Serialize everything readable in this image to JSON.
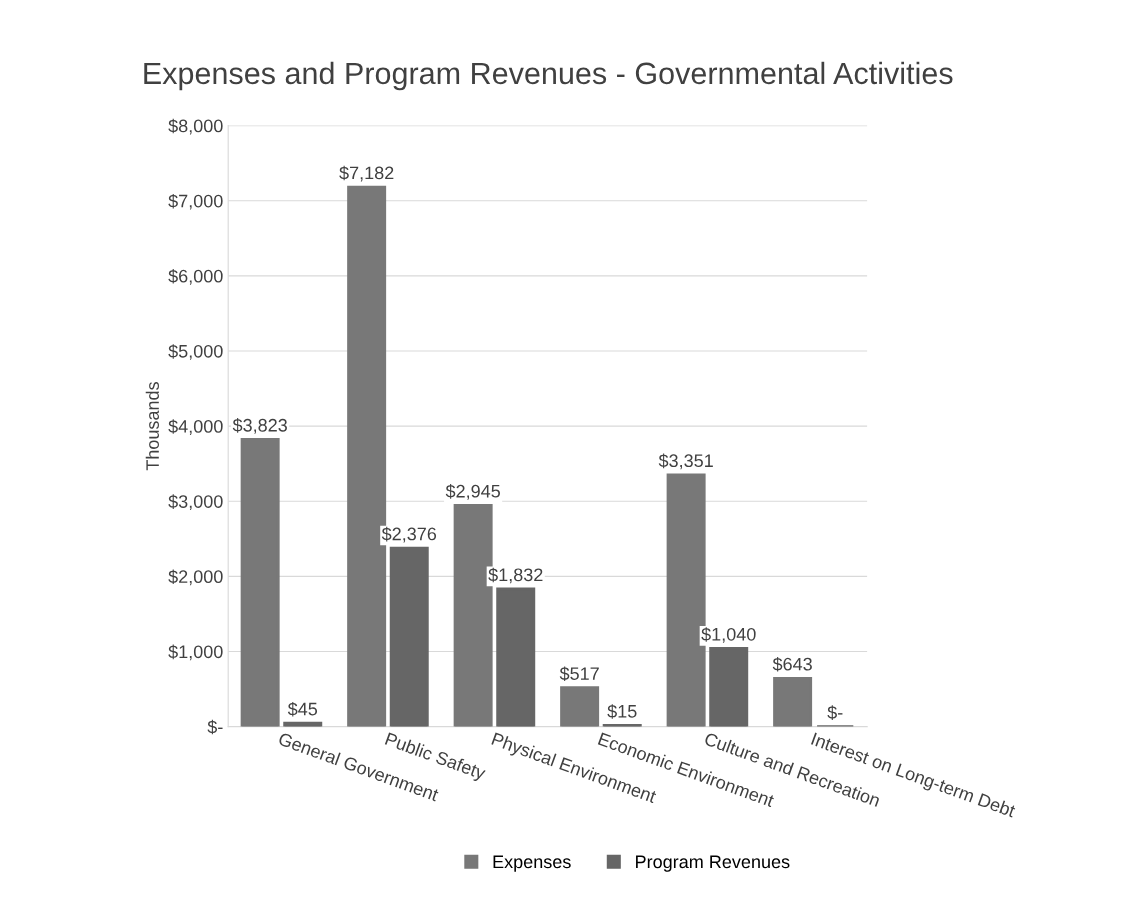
{
  "chart_data": {
    "type": "bar",
    "title": "Expenses and Program Revenues - Governmental Activities",
    "ylabel": "Thousands",
    "categories": [
      "General Government",
      "Public Safety",
      "Physical Environment",
      "Economic Environment",
      "Culture and Recreation",
      "Interest on Long-term Debt"
    ],
    "series": [
      {
        "name": "Expenses",
        "color": "#787878",
        "values": [
          3823,
          7182,
          2945,
          517,
          3351,
          643
        ],
        "value_labels": [
          "$3,823",
          "$7,182",
          "$2,945",
          "$517",
          "$3,351",
          "$643"
        ]
      },
      {
        "name": "Program Revenues",
        "color": "#666666",
        "values": [
          45,
          2376,
          1832,
          15,
          1040,
          0
        ],
        "value_labels": [
          "$45",
          "$2,376",
          "$1,832",
          "$15",
          "$1,040",
          "$-"
        ]
      }
    ],
    "ylim": [
      0,
      8000
    ],
    "yticks": [
      {
        "value": 0,
        "label": "$-"
      },
      {
        "value": 1000,
        "label": "$1,000"
      },
      {
        "value": 2000,
        "label": "$2,000"
      },
      {
        "value": 3000,
        "label": "$3,000"
      },
      {
        "value": 4000,
        "label": "$4,000"
      },
      {
        "value": 5000,
        "label": "$5,000"
      },
      {
        "value": 6000,
        "label": "$6,000"
      },
      {
        "value": 7000,
        "label": "$7,000"
      },
      {
        "value": 8000,
        "label": "$8,000"
      }
    ],
    "grid": "y",
    "legend": "bottom"
  }
}
